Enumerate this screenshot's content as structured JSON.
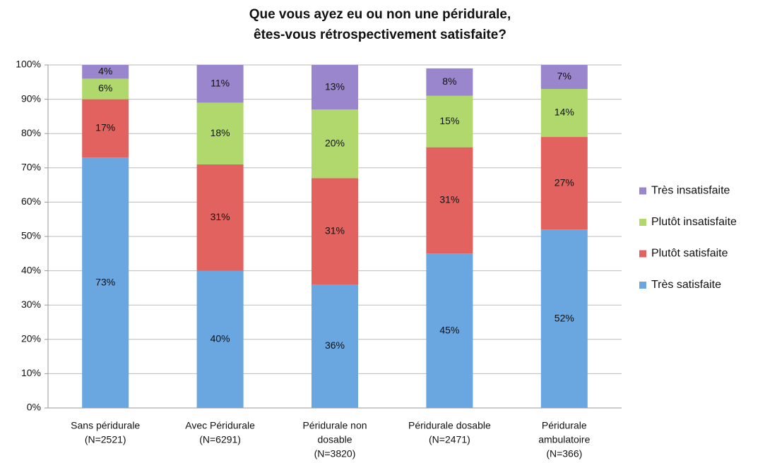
{
  "chart_data": {
    "type": "stacked_bar",
    "title": [
      "Que vous ayez eu ou non une péridurale,",
      "êtes-vous rétrospectivement satisfaite?"
    ],
    "categories": [
      [
        "Sans péridurale",
        "(N=2521)"
      ],
      [
        "Avec Péridurale",
        "(N=6291)"
      ],
      [
        "Péridurale non",
        "dosable",
        "(N=3820)"
      ],
      [
        "Péridurale dosable",
        "(N=2471)"
      ],
      [
        "Péridurale",
        "ambulatoire",
        "(N=366)"
      ]
    ],
    "series": [
      {
        "name": "Très satisfaite",
        "color": "#6aa6e0",
        "values": [
          73,
          40,
          36,
          45,
          52
        ],
        "value_labels": [
          "73%",
          "40%",
          "36%",
          "45%",
          "52%"
        ]
      },
      {
        "name": "Plutôt satisfaite",
        "color": "#e2625f",
        "values": [
          17,
          31,
          31,
          31,
          27
        ],
        "value_labels": [
          "17%",
          "31%",
          "31%",
          "31%",
          "27%"
        ]
      },
      {
        "name": "Plutôt insatisfaite",
        "color": "#b0d86c",
        "values": [
          6,
          18,
          20,
          15,
          14
        ],
        "value_labels": [
          "6%",
          "18%",
          "20%",
          "15%",
          "14%"
        ]
      },
      {
        "name": "Très insatisfaite",
        "color": "#9a86cc",
        "values": [
          4,
          11,
          13,
          8,
          7
        ],
        "value_labels": [
          "4%",
          "11%",
          "13%",
          "8%",
          "7%"
        ]
      }
    ],
    "ylim": [
      0,
      100
    ],
    "yticks": [
      {
        "value": 0,
        "label": "0%"
      },
      {
        "value": 10,
        "label": "10%"
      },
      {
        "value": 20,
        "label": "20%"
      },
      {
        "value": 30,
        "label": "30%"
      },
      {
        "value": 40,
        "label": "40%"
      },
      {
        "value": 50,
        "label": "50%"
      },
      {
        "value": 60,
        "label": "60%"
      },
      {
        "value": 70,
        "label": "70%"
      },
      {
        "value": 80,
        "label": "80%"
      },
      {
        "value": 90,
        "label": "90%"
      },
      {
        "value": 100,
        "label": "100%"
      }
    ],
    "grid": true,
    "legend": "right"
  }
}
